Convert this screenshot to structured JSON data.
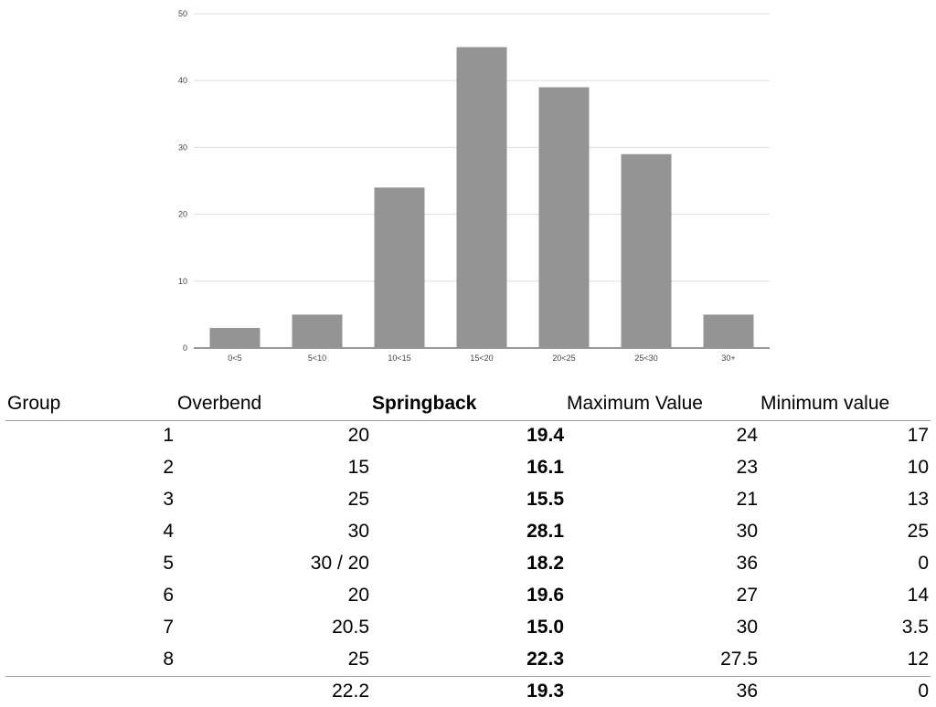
{
  "chart_data": {
    "type": "bar",
    "categories": [
      "0<5",
      "5<10",
      "10<15",
      "15<20",
      "20<25",
      "25<30",
      "30+"
    ],
    "values": [
      3,
      5,
      24,
      45,
      39,
      29,
      5
    ],
    "ylim": [
      0,
      50
    ],
    "yticks": [
      0,
      10,
      20,
      30,
      40,
      50
    ],
    "grid": true,
    "bar_color": "#949494",
    "title": "",
    "xlabel": "",
    "ylabel": ""
  },
  "table": {
    "headers": {
      "group": "Group",
      "overbend": "Overbend",
      "springback": "Springback",
      "max": "Maximum Value",
      "min": "Minimum value"
    },
    "rows": [
      {
        "group": "1",
        "overbend": "20",
        "springback": "19.4",
        "max": "24",
        "min": "17"
      },
      {
        "group": "2",
        "overbend": "15",
        "springback": "16.1",
        "max": "23",
        "min": "10"
      },
      {
        "group": "3",
        "overbend": "25",
        "springback": "15.5",
        "max": "21",
        "min": "13"
      },
      {
        "group": "4",
        "overbend": "30",
        "springback": "28.1",
        "max": "30",
        "min": "25"
      },
      {
        "group": "5",
        "overbend": "30 / 20",
        "springback": "18.2",
        "max": "36",
        "min": "0"
      },
      {
        "group": "6",
        "overbend": "20",
        "springback": "19.6",
        "max": "27",
        "min": "14"
      },
      {
        "group": "7",
        "overbend": "20.5",
        "springback": "15.0",
        "max": "30",
        "min": "3.5"
      },
      {
        "group": "8",
        "overbend": "25",
        "springback": "22.3",
        "max": "27.5",
        "min": "12"
      }
    ],
    "summary": {
      "group": "",
      "overbend": "22.2",
      "springback": "19.3",
      "max": "36",
      "min": "0"
    }
  }
}
